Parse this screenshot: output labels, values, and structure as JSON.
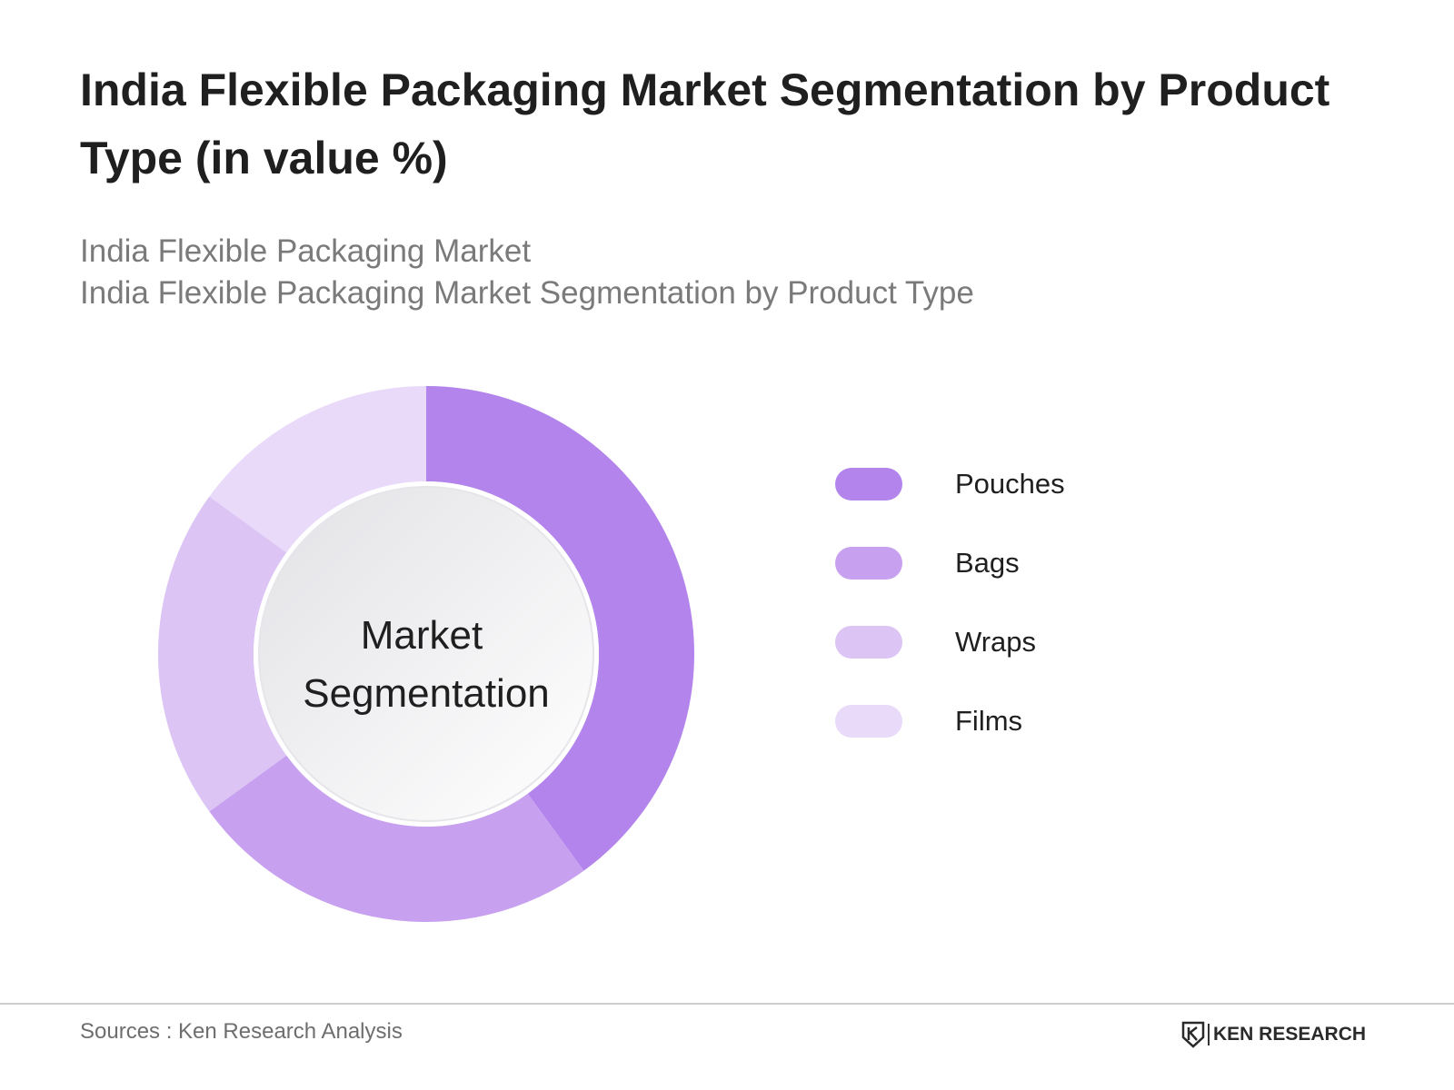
{
  "chart_data": {
    "type": "pie",
    "title": "India Flexible Packaging Market Segmentation by Product Type (in value %)",
    "subtitle": [
      "India Flexible Packaging Market",
      "India Flexible Packaging Market Segmentation by Product Type"
    ],
    "center_label": [
      "Market",
      "Segmentation"
    ],
    "categories": [
      "Pouches",
      "Bags",
      "Wraps",
      "Films"
    ],
    "values": [
      40,
      25,
      20,
      15
    ],
    "colors": [
      "#b385ec",
      "#c8a0f0",
      "#dcc4f5",
      "#e9dafa"
    ],
    "legend_position": "right"
  },
  "footer": {
    "sources": "Sources : Ken Research Analysis",
    "brand": "KEN RESEARCH"
  }
}
